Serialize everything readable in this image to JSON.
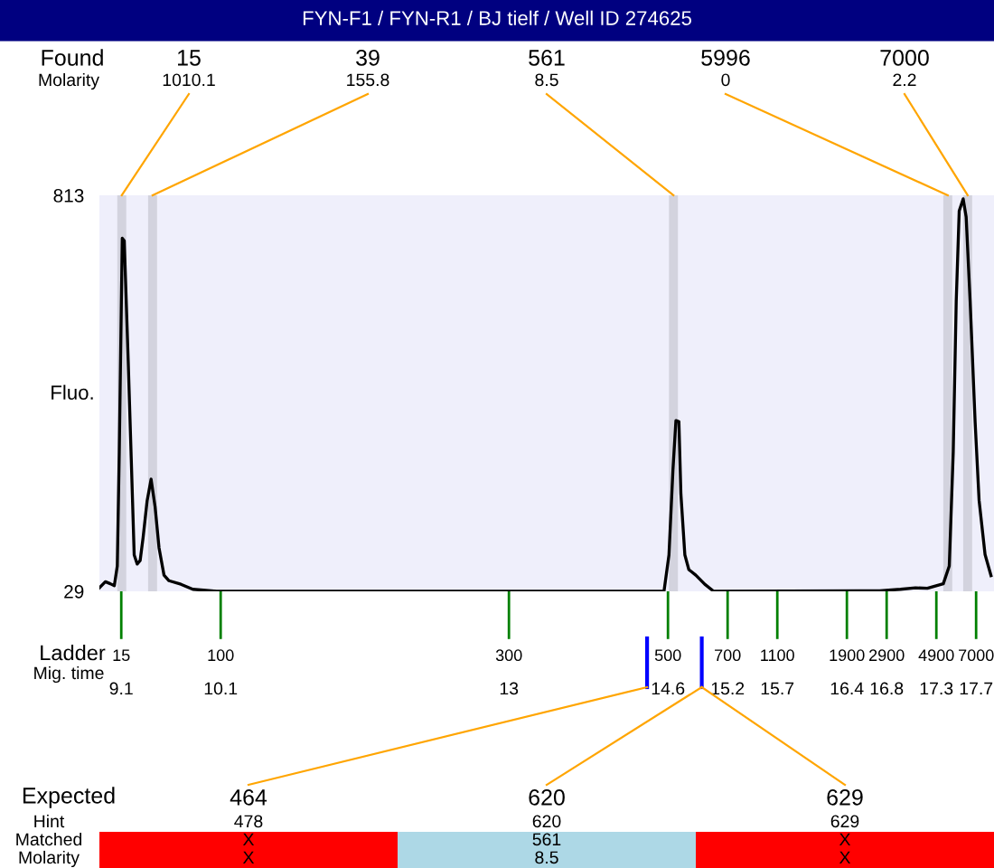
{
  "chart_data": [
    {
      "type": "line",
      "title": "FYN-F1 / FYN-R1 / BJ tielf / Well ID 274625",
      "ylabel": "Fluo.",
      "xlabel": "Mig. time",
      "annotations": [
        "Found",
        "Molarity",
        {
          "text": "15",
          "x": 9.1,
          "y": 29
        },
        {
          "text": "100",
          "x": 10.1,
          "y": 29
        },
        {
          "text": "300",
          "x": 13,
          "y": 29
        },
        {
          "text": "500",
          "x": 14.6,
          "y": 29
        },
        {
          "text": "700",
          "x": 15.2,
          "y": 29
        },
        {
          "text": "1100",
          "x": 15.7,
          "y": 29
        },
        {
          "text": "1900",
          "x": 16.4,
          "y": 29
        },
        {
          "text": "2900",
          "x": 16.8,
          "y": 29
        },
        {
          "text": "4900",
          "x": 17.3,
          "y": 29
        },
        {
          "text": "7000",
          "x": 17.7,
          "y": 29
        }
      ],
      "series": [
        {
          "color": "#000000",
          "x": [
            8.88,
            8.94,
            8.99,
            9.03,
            9.06,
            9.08,
            9.11,
            9.13,
            9.17,
            9.2,
            9.23,
            9.26,
            9.29,
            9.32,
            9.36,
            9.4,
            9.44,
            9.48,
            9.53,
            9.58,
            9.7,
            9.82,
            10.06,
            11.52,
            13.34,
            14.56,
            14.61,
            14.65,
            14.68,
            14.71,
            14.73,
            14.77,
            14.81,
            14.88,
            14.97,
            15.06,
            16.55,
            16.73,
            16.94,
            17.09,
            17.21,
            17.37,
            17.43,
            17.47,
            17.5,
            17.53,
            17.57,
            17.6,
            17.64,
            17.69,
            17.73,
            17.79,
            17.85
          ],
          "values": [
            36,
            48,
            44,
            40,
            79,
            305,
            728,
            723,
            484,
            294,
            101,
            83,
            90,
            136,
            208,
            251,
            197,
            115,
            61,
            50,
            43,
            33,
            29,
            29,
            29,
            29,
            101,
            269,
            367,
            365,
            222,
            101,
            72,
            61,
            43,
            29,
            30,
            30,
            33,
            36,
            35,
            44,
            79,
            305,
            603,
            782,
            806,
            770,
            603,
            365,
            209,
            102,
            60
          ]
        }
      ],
      "xlim": [
        8.88,
        17.88
      ],
      "ylim": [
        29,
        813
      ],
      "yticks": [
        29,
        813
      ],
      "xticks": [
        9.1,
        10.1,
        13,
        14.6,
        15.2,
        15.7,
        16.4,
        16.8,
        17.3,
        17.7
      ],
      "bands": [
        {
          "axis": "x",
          "from": 9.06,
          "to": 9.15,
          "label": "15\n1010.1",
          "color": "#d3d3de"
        },
        {
          "axis": "x",
          "from": 9.37,
          "to": 9.46,
          "label": "39\n155.8",
          "color": "#d3d3de"
        },
        {
          "axis": "x",
          "from": 14.61,
          "to": 14.7,
          "label": "561\n8.5",
          "color": "#d3d3de"
        },
        {
          "axis": "x",
          "from": 17.37,
          "to": 17.46,
          "label": "5996\n0",
          "color": "#d3d3de"
        },
        {
          "axis": "x",
          "from": 17.57,
          "to": 17.66,
          "label": "7000\n2.2",
          "color": "#d3d3de"
        }
      ],
      "grid": false,
      "legend": false
    },
    {
      "type": "other",
      "annotations": [
        "Ladder"
      ],
      "y_categories": [
        "Expected",
        "Hint",
        "Matched",
        "Molarity"
      ],
      "cell_labels": [
        [
          "464",
          "620",
          "629"
        ],
        [
          "478",
          "620",
          "629"
        ],
        [
          "X",
          "561",
          "X"
        ],
        [
          "X",
          "8.5",
          "X"
        ]
      ],
      "colors": [
        "#ff0000",
        "#add8e6",
        "#ff0000"
      ]
    }
  ]
}
